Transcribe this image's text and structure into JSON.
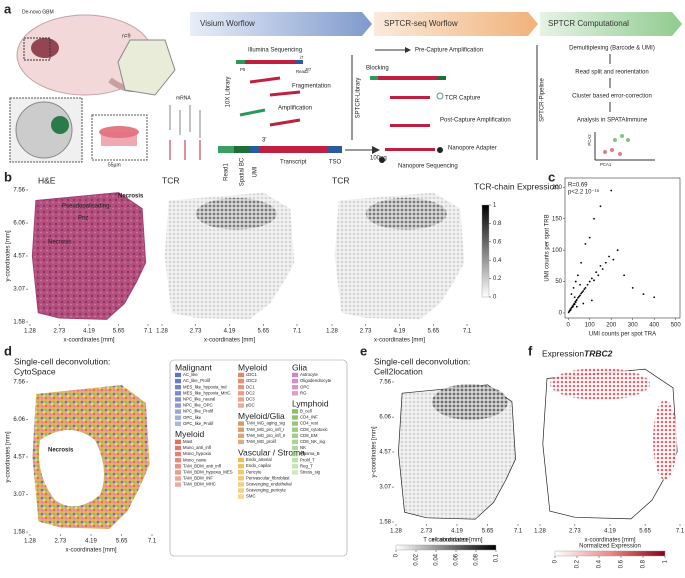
{
  "panel_labels": [
    "a",
    "b",
    "c",
    "d",
    "e",
    "f"
  ],
  "a": {
    "sample": "De-novo GBM",
    "n": "n=9",
    "mrna": "mRNA",
    "spot_size": "55µm",
    "workflows": [
      "Visium Worflow",
      "SPTCR-seq Worflow",
      "SPTCR Computational"
    ],
    "visium": {
      "steps": [
        "Illumina Sequencing",
        "Fragmentation",
        "Amplification"
      ],
      "library": "10X Library",
      "adapters": [
        "P5",
        "Read2",
        "i7",
        "P7"
      ],
      "three_prime": "3'",
      "transcript": "Transcript",
      "segments": [
        "Read1",
        "Spatial BC",
        "UMI"
      ],
      "tso": "TSO",
      "amount": "100ng",
      "sptcr_library": "SPTCR-Library"
    },
    "sptcr": {
      "steps": [
        "Pre-Capture Amplification",
        "Blocking",
        "TCR Capture",
        "Post-Capture Amplification",
        "Nanopore Adapter",
        "Nanopore Sequencing"
      ]
    },
    "computational": {
      "pipeline": "SPTCR-Pipeline",
      "steps": [
        "Demultiplexing (Barcode & UMI)",
        "Read split and reorientation",
        "Cluster based error-correction",
        "Analysis in SPATAImmune"
      ],
      "pca": [
        "PCA1",
        "PCA2"
      ]
    }
  },
  "coords": {
    "xlabel": "x-coordinates [mm]",
    "ylabel": "y-coordinates [mm]",
    "xlim": [
      1.28,
      7.1
    ],
    "ylim": [
      1.58,
      7.56
    ],
    "xticks": [
      1.28,
      2.73,
      4.19,
      5.65,
      7.1
    ],
    "yticks": [
      1.58,
      3.07,
      4.57,
      6.06,
      7.56
    ]
  },
  "b": {
    "titles": [
      "H&E",
      "TCR",
      "TCR"
    ],
    "annotations": [
      "Necrosis",
      "Pseudopalisading",
      "Pnz",
      "Necrosis"
    ],
    "colorbar": {
      "title": "TCR-chain Expression",
      "lim": [
        0,
        1
      ],
      "ticks": [
        0,
        0.2,
        0.4,
        0.6,
        0.8,
        1
      ]
    }
  },
  "c": {
    "stats": [
      "R=0.69",
      "p<2.2 10⁻¹⁶"
    ],
    "xlabel": "UMI counts per spot TRA",
    "ylabel": "UMI counts per spot TRB",
    "color": "#000000",
    "xlim": [
      -15,
      520
    ],
    "ylim": [
      -8,
      215
    ],
    "xticks": [
      0,
      100,
      200,
      300,
      400,
      500
    ],
    "yticks": [
      0,
      50,
      100,
      150,
      200
    ],
    "x": [
      2,
      5,
      8,
      10,
      12,
      15,
      18,
      20,
      22,
      25,
      28,
      30,
      33,
      35,
      38,
      40,
      45,
      50,
      55,
      60,
      65,
      70,
      75,
      80,
      90,
      100,
      110,
      120,
      130,
      140,
      150,
      160,
      175,
      190,
      210,
      230,
      260,
      300,
      350,
      400,
      15,
      25,
      35,
      45,
      60,
      80,
      100,
      120,
      150,
      200,
      40,
      70,
      110,
      30,
      55
    ],
    "y": [
      1,
      3,
      4,
      6,
      5,
      8,
      9,
      11,
      10,
      13,
      15,
      14,
      18,
      17,
      20,
      21,
      24,
      26,
      28,
      31,
      33,
      35,
      38,
      40,
      45,
      50,
      55,
      52,
      65,
      60,
      75,
      70,
      80,
      90,
      85,
      100,
      60,
      40,
      30,
      25,
      30,
      40,
      50,
      60,
      80,
      110,
      120,
      150,
      170,
      195,
      10,
      15,
      20,
      25,
      45
    ]
  },
  "d": {
    "title": [
      "Single-cell deconvolution:",
      "CytoSpace"
    ],
    "annotation": "Necrosis",
    "legend": [
      {
        "name": "Malignant",
        "color": "#5f73c0",
        "items": [
          "AC_like",
          "AC_like_Prolif",
          "MES_like_hypoxia_ind",
          "MES_like_hypoxia_MHC",
          "NPC_like_neural",
          "NPC_like_OPC",
          "NPC_like_Prolif",
          "OPC_like",
          "OPC_like_Prolif"
        ]
      },
      {
        "name": "Myeloid",
        "color": "#e0705e",
        "items": [
          "Mast",
          "Mono_anti_infl",
          "Mono_hypoxia",
          "Mono_naive",
          "TAM_BDM_anti_infl",
          "TAM_BDM_hypoxia_MES",
          "TAM_BDM_INF",
          "TAM_BDM_MHC"
        ]
      },
      {
        "name": "Myeloid",
        "color": "#e8866a",
        "items": [
          "cDC1",
          "cDC2",
          "DC1",
          "DC2",
          "DC3",
          "pDC"
        ]
      },
      {
        "name": "Myeloid/Glia",
        "color": "#d99a62",
        "items": [
          "TAM_MG_aging_sig",
          "TAM_MG_pro_infl_I",
          "TAM_MG_pro_infl_II",
          "TAM_MG_prolif"
        ]
      },
      {
        "name": "Vascular / Stroma",
        "color": "#f0be55",
        "items": [
          "Endo_arterial",
          "Endo_capilar",
          "Pericyte",
          "Perivascular_fibroblast",
          "Scavenging_endothelial",
          "Scavenging_pericyte",
          "SMC"
        ]
      },
      {
        "name": "Glia",
        "color": "#d586c2",
        "items": [
          "Astrocyte",
          "Oligodendrocyte",
          "OPC",
          "RG"
        ]
      },
      {
        "name": "Lymphoid",
        "color": "#86c266",
        "items": [
          "B_cell",
          "CD4_INF",
          "CD4_rest",
          "CD8_cytotoxic",
          "CD8_EM",
          "CD8_NK_sig",
          "NK",
          "Plasma_B",
          "Prolif_T",
          "Reg_T",
          "Stress_sig"
        ]
      }
    ]
  },
  "e": {
    "title": [
      "Single-cell deconvolution:",
      "Cell2location"
    ],
    "colorbar": {
      "title": "T cell abundance",
      "lim": [
        0,
        0.1
      ],
      "ticks": [
        0,
        0.02,
        0.04,
        0.06,
        0.08,
        0.1
      ]
    }
  },
  "f": {
    "title": "Expression",
    "gene": "TRBC2",
    "colorbar": {
      "title": "Normalized Expression",
      "lim": [
        0,
        1
      ],
      "ticks": [
        0,
        0.2,
        0.4,
        0.6,
        0.8,
        1
      ]
    }
  }
}
